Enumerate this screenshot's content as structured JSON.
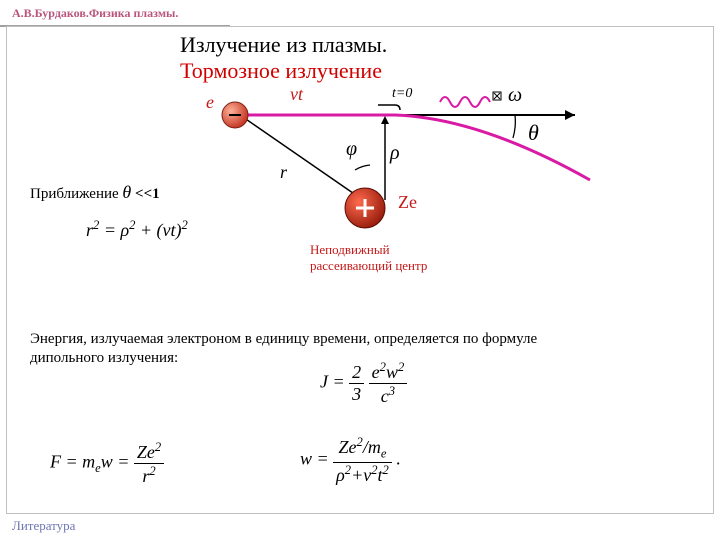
{
  "header": {
    "author": "А.В.Бурдаков.Физика плазмы.",
    "footer": "Литература"
  },
  "titles": {
    "line1": "Излучение из плазмы.",
    "line2": "Тормозное излучение"
  },
  "diagram": {
    "electron_label": "e",
    "vt_label": "vt",
    "t0_label": "t=0",
    "r_label": "r",
    "phi_label": "φ",
    "rho_label": "ρ",
    "ze_label": "Zе",
    "theta_label": "θ",
    "omega_label": "ω",
    "scatter_caption_line1": "Неподвижный",
    "scatter_caption_line2": "рассеивающий центр",
    "colors": {
      "trajectory": "#d91aa4",
      "electron_fill": "#d83a2a",
      "electron_stroke": "#7a1f16",
      "ion_fill_outer": "#e23b23",
      "ion_fill_inner": "#b3210f",
      "wave": "#d91aa4",
      "black": "#000000"
    }
  },
  "approx": {
    "label_text": "Приближение ",
    "expr_prefix": "θ",
    "expr_tail": "<<1"
  },
  "equations": {
    "r2_html": "r<sup>2</sup> = ρ<sup>2</sup> + (vt)<sup>2</sup>",
    "energy_text": "Энергия, излучаемая электроном в единицу времени, определяется по формуле дипольного излучения:",
    "J_html": "J = <span class='frac'><span class='num'>2</span><span class='den'>3</span></span> <span class='frac'><span class='num'>e<sup>2</sup>w<sup>2</sup></span><span class='den'>c<sup>3</sup></span></span>",
    "F_html": "F = m<sub>e</sub>w = <span class='frac'><span class='num'>Ze<sup>2</sup></span><span class='den'>r<sup>2</sup></span></span>",
    "w_html": "w = <span class='frac'><span class='num'>Ze<sup>2</sup>/m<sub>e</sub></span><span class='den'>ρ<sup>2</sup>+v<sup>2</sup>t<sup>2</sup></span></span> ."
  },
  "style": {
    "title_color_1": "#000000",
    "title_color_2": "#d10000",
    "approx_fontsize": 15,
    "eq_fontsize": 18,
    "body_fontsize": 15
  }
}
